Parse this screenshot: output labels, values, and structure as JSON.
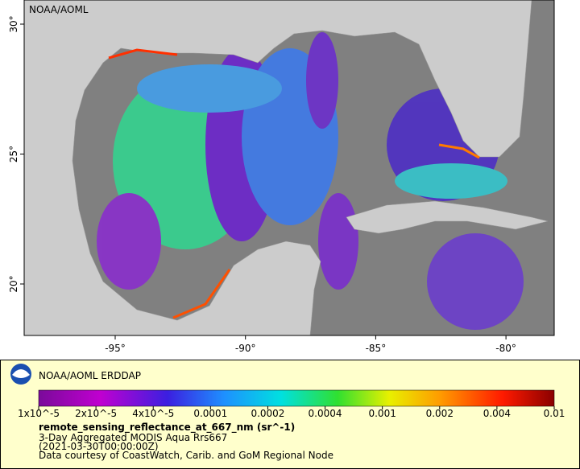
{
  "map": {
    "corner_label": "NOAA/AOML",
    "lon_labels": [
      "-95°",
      "-90°",
      "-85°",
      "-80°"
    ],
    "lat_labels": [
      "30°",
      "25°",
      "20°"
    ]
  },
  "legend": {
    "title": "NOAA/AOML ERDDAP",
    "colorbar_labels": [
      "1x10^-5",
      "2x10^-5",
      "4x10^-5",
      "0.0001",
      "0.0002",
      "0.0004",
      "0.001",
      "0.002",
      "0.004",
      "0.01"
    ],
    "variable": "remote_sensing_reflectance_at_667_nm (sr^-1)",
    "lines": [
      "3-Day Aggregated MODIS Aqua Rrs667",
      "(2021-03-30T00:00:00Z)",
      "Data courtesy of CoastWatch, Carib. and GoM Regional Node"
    ]
  }
}
